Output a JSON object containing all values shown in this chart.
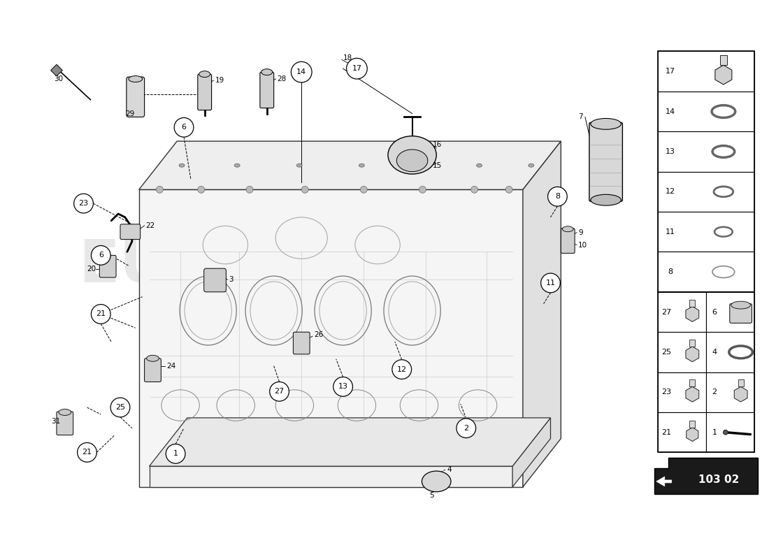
{
  "bg_color": "#ffffff",
  "fig_width": 11.0,
  "fig_height": 8.0,
  "part_code": "103 02",
  "legend_upper": [
    {
      "num": "17",
      "shape": "bolt_hex"
    },
    {
      "num": "14",
      "shape": "ring_thin"
    },
    {
      "num": "13",
      "shape": "ring_med"
    },
    {
      "num": "12",
      "shape": "ring_small"
    },
    {
      "num": "11",
      "shape": "ring_xsmall"
    },
    {
      "num": "8",
      "shape": "ring_plain"
    }
  ],
  "legend_lower_left": [
    {
      "num": "27",
      "shape": "bolt_sm"
    },
    {
      "num": "25",
      "shape": "bolt_sm"
    },
    {
      "num": "23",
      "shape": "bolt_sm"
    },
    {
      "num": "21",
      "shape": "bolt_flat"
    }
  ],
  "legend_lower_right": [
    {
      "num": "6",
      "shape": "cylinder"
    },
    {
      "num": "4",
      "shape": "ring_wide"
    },
    {
      "num": "2",
      "shape": "bolt_dome"
    },
    {
      "num": "1",
      "shape": "rod"
    }
  ]
}
